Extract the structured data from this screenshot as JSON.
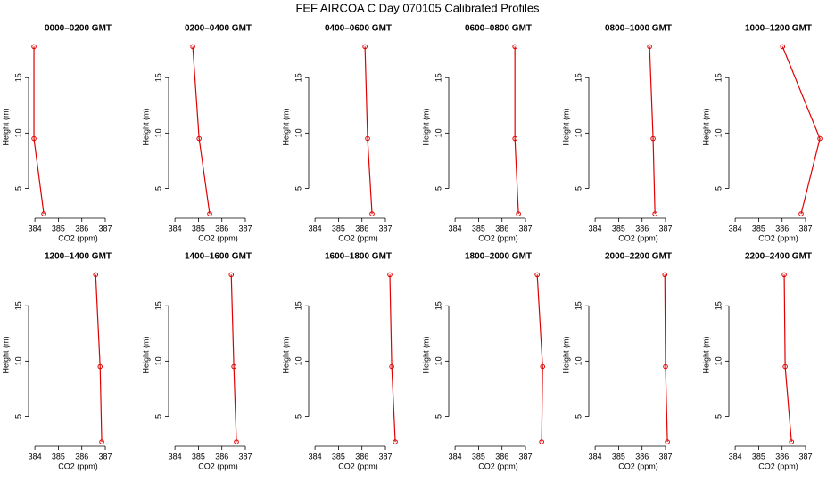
{
  "title": "FEF AIRCOA C  Day 070105  Calibrated Profiles",
  "chart_data": [
    {
      "type": "line",
      "title": "0000–0200 GMT",
      "xlabel": "CO2 (ppm)",
      "ylabel": "Height (m)",
      "color": "#e00000",
      "x": [
        383.96,
        383.96,
        384.38
      ],
      "values": [
        17.8,
        9.5,
        2.7
      ],
      "xlim": [
        383.73,
        387.95
      ],
      "ylim": [
        2.3,
        18.8
      ],
      "xticks": [
        384,
        385,
        386,
        387
      ],
      "yticks": [
        5,
        10,
        15
      ]
    },
    {
      "type": "line",
      "title": "0200–0400 GMT",
      "xlabel": "CO2 (ppm)",
      "ylabel": "Height (m)",
      "color": "#e00000",
      "x": [
        384.76,
        385.03,
        385.48
      ],
      "values": [
        17.8,
        9.5,
        2.7
      ],
      "xlim": [
        383.73,
        387.95
      ],
      "ylim": [
        2.3,
        18.8
      ],
      "xticks": [
        384,
        385,
        386,
        387
      ],
      "yticks": [
        5,
        10,
        15
      ]
    },
    {
      "type": "line",
      "title": "0400–0600 GMT",
      "xlabel": "CO2 (ppm)",
      "ylabel": "Height (m)",
      "color": "#e00000",
      "x": [
        386.13,
        386.24,
        386.43
      ],
      "values": [
        17.8,
        9.5,
        2.7
      ],
      "xlim": [
        383.73,
        387.95
      ],
      "ylim": [
        2.3,
        18.8
      ],
      "xticks": [
        384,
        385,
        386,
        387
      ],
      "yticks": [
        5,
        10,
        15
      ]
    },
    {
      "type": "line",
      "title": "0600–0800 GMT",
      "xlabel": "CO2 (ppm)",
      "ylabel": "Height (m)",
      "color": "#e00000",
      "x": [
        386.55,
        386.55,
        386.7
      ],
      "values": [
        17.8,
        9.5,
        2.7
      ],
      "xlim": [
        383.73,
        387.95
      ],
      "ylim": [
        2.3,
        18.8
      ],
      "xticks": [
        384,
        385,
        386,
        387
      ],
      "yticks": [
        5,
        10,
        15
      ]
    },
    {
      "type": "line",
      "title": "0800–1000 GMT",
      "xlabel": "CO2 (ppm)",
      "ylabel": "Height (m)",
      "color": "#e00000",
      "x": [
        386.32,
        386.47,
        386.55
      ],
      "values": [
        17.8,
        9.5,
        2.7
      ],
      "xlim": [
        383.73,
        387.95
      ],
      "ylim": [
        2.3,
        18.8
      ],
      "xticks": [
        384,
        385,
        386,
        387
      ],
      "yticks": [
        5,
        10,
        15
      ]
    },
    {
      "type": "line",
      "title": "1000–1200 GMT",
      "xlabel": "CO2 (ppm)",
      "ylabel": "Height (m)",
      "color": "#e00000",
      "x": [
        386.02,
        387.61,
        386.81
      ],
      "values": [
        17.8,
        9.5,
        2.7
      ],
      "xlim": [
        383.73,
        387.95
      ],
      "ylim": [
        2.3,
        18.8
      ],
      "xticks": [
        384,
        385,
        386,
        387
      ],
      "yticks": [
        5,
        10,
        15
      ]
    },
    {
      "type": "line",
      "title": "1200–1400 GMT",
      "xlabel": "CO2 (ppm)",
      "ylabel": "Height (m)",
      "color": "#e00000",
      "x": [
        386.59,
        386.78,
        386.85
      ],
      "values": [
        17.8,
        9.5,
        2.7
      ],
      "xlim": [
        383.73,
        387.95
      ],
      "ylim": [
        2.3,
        18.8
      ],
      "xticks": [
        384,
        385,
        386,
        387
      ],
      "yticks": [
        5,
        10,
        15
      ]
    },
    {
      "type": "line",
      "title": "1400–1600 GMT",
      "xlabel": "CO2 (ppm)",
      "ylabel": "Height (m)",
      "color": "#e00000",
      "x": [
        386.4,
        386.51,
        386.62
      ],
      "values": [
        17.8,
        9.5,
        2.7
      ],
      "xlim": [
        383.73,
        387.95
      ],
      "ylim": [
        2.3,
        18.8
      ],
      "xticks": [
        384,
        385,
        386,
        387
      ],
      "yticks": [
        5,
        10,
        15
      ]
    },
    {
      "type": "line",
      "title": "1600–1800 GMT",
      "xlabel": "CO2 (ppm)",
      "ylabel": "Height (m)",
      "color": "#e00000",
      "x": [
        387.19,
        387.27,
        387.42
      ],
      "values": [
        17.8,
        9.5,
        2.7
      ],
      "xlim": [
        383.73,
        387.95
      ],
      "ylim": [
        2.3,
        18.8
      ],
      "xticks": [
        384,
        385,
        386,
        387
      ],
      "yticks": [
        5,
        10,
        15
      ]
    },
    {
      "type": "line",
      "title": "1800–2000 GMT",
      "xlabel": "CO2 (ppm)",
      "ylabel": "Height (m)",
      "color": "#e00000",
      "x": [
        387.5,
        387.73,
        387.69
      ],
      "values": [
        17.8,
        9.5,
        2.7
      ],
      "xlim": [
        383.73,
        387.95
      ],
      "ylim": [
        2.3,
        18.8
      ],
      "xticks": [
        384,
        385,
        386,
        387
      ],
      "yticks": [
        5,
        10,
        15
      ]
    },
    {
      "type": "line",
      "title": "2000–2200 GMT",
      "xlabel": "CO2 (ppm)",
      "ylabel": "Height (m)",
      "color": "#e00000",
      "x": [
        386.97,
        387.0,
        387.08
      ],
      "values": [
        17.8,
        9.5,
        2.7
      ],
      "xlim": [
        383.73,
        387.95
      ],
      "ylim": [
        2.3,
        18.8
      ],
      "xticks": [
        384,
        385,
        386,
        387
      ],
      "yticks": [
        5,
        10,
        15
      ]
    },
    {
      "type": "line",
      "title": "2200–2400 GMT",
      "xlabel": "CO2 (ppm)",
      "ylabel": "Height (m)",
      "color": "#e00000",
      "x": [
        386.09,
        386.13,
        386.4
      ],
      "values": [
        17.8,
        9.5,
        2.7
      ],
      "xlim": [
        383.73,
        387.95
      ],
      "ylim": [
        2.3,
        18.8
      ],
      "xticks": [
        384,
        385,
        386,
        387
      ],
      "yticks": [
        5,
        10,
        15
      ]
    }
  ]
}
